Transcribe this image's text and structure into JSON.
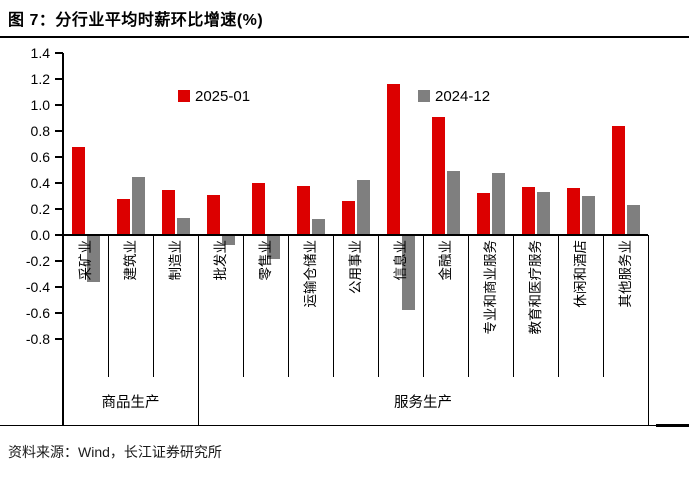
{
  "figure": {
    "title": "图 7：分行业平均时薪环比增速(%)",
    "source": "资料来源：Wind，长江证券研究所"
  },
  "chart_data": {
    "type": "bar",
    "title": "分行业平均时薪环比增速(%)",
    "categories": [
      "采矿业",
      "建筑业",
      "制造业",
      "批发业",
      "零售业",
      "运输仓储业",
      "公用事业",
      "信息业",
      "金融业",
      "专业和商业服务",
      "教育和医疗服务",
      "休闲和酒店",
      "其他服务业"
    ],
    "series": [
      {
        "name": "2025-01",
        "color": "#dc0000",
        "values": [
          0.68,
          0.28,
          0.35,
          0.31,
          0.4,
          0.38,
          0.26,
          1.16,
          0.91,
          0.32,
          0.37,
          0.36,
          0.84
        ]
      },
      {
        "name": "2024-12",
        "color": "#7f7f7f",
        "values": [
          -0.35,
          0.45,
          0.13,
          -0.07,
          -0.18,
          0.12,
          0.42,
          -0.57,
          0.49,
          0.48,
          0.33,
          0.3,
          0.23
        ]
      }
    ],
    "groups": [
      {
        "label": "商品生产",
        "span": 3
      },
      {
        "label": "服务生产",
        "span": 10
      }
    ],
    "yticks": [
      1.4,
      1.2,
      1.0,
      0.8,
      0.6,
      0.4,
      0.2,
      0.0,
      -0.2,
      -0.4,
      -0.6,
      -0.8
    ],
    "ylim": [
      -0.8,
      1.4
    ],
    "ylabel": "",
    "xlabel": "",
    "grid": false,
    "legend_position": "top"
  }
}
